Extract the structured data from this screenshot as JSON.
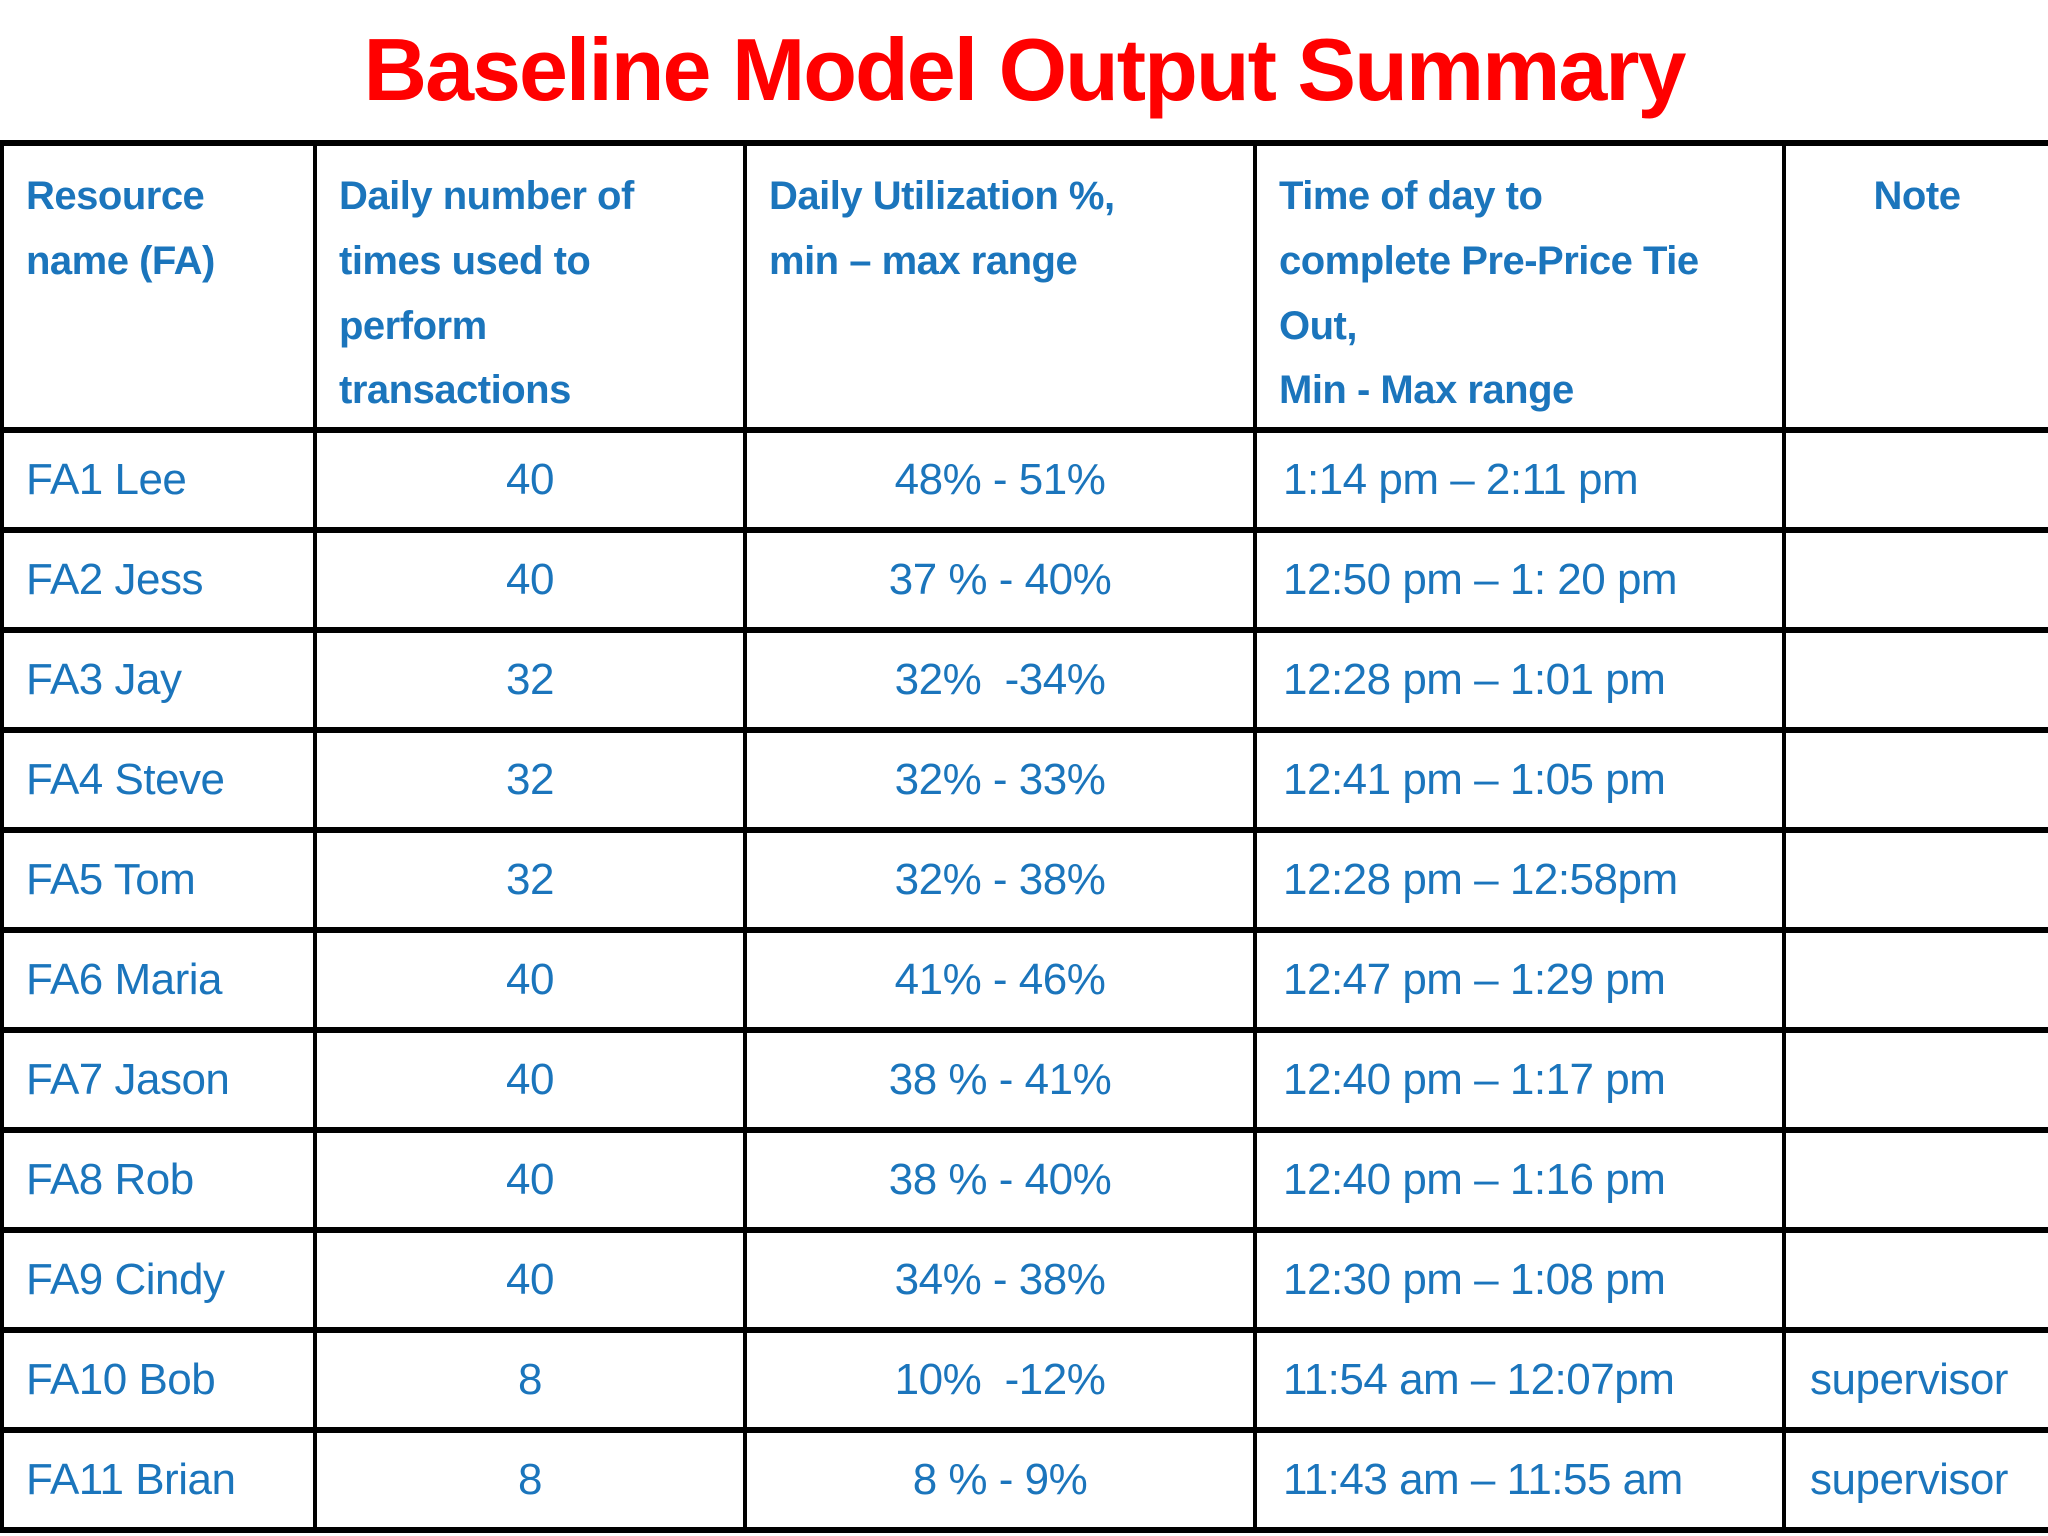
{
  "title": {
    "text": "Baseline Model Output Summary"
  },
  "colors": {
    "title_red": "#FF0000",
    "text_blue": "#1B75BC",
    "border_black": "#000000",
    "bg_white": "#FFFFFF"
  },
  "table": {
    "columns": [
      {
        "key": "resource",
        "label": "Resource\nname (FA)"
      },
      {
        "key": "daily_times",
        "label": "Daily number of\ntimes used to\nperform\ntransactions"
      },
      {
        "key": "utilization",
        "label": "Daily Utilization %,\nmin – max range"
      },
      {
        "key": "time_of_day",
        "label": "Time of day to\ncomplete Pre-Price Tie\nOut,\nMin - Max range"
      },
      {
        "key": "note",
        "label": "Note"
      }
    ],
    "rows": [
      {
        "resource": "FA1 Lee",
        "daily_times": "40",
        "utilization": "48% - 51%",
        "time_of_day": "1:14 pm – 2:11 pm",
        "note": ""
      },
      {
        "resource": "FA2 Jess",
        "daily_times": "40",
        "utilization": "37 % - 40%",
        "time_of_day": "12:50 pm – 1: 20 pm",
        "note": ""
      },
      {
        "resource": "FA3 Jay",
        "daily_times": "32",
        "utilization": "32%  -34%",
        "time_of_day": "12:28 pm – 1:01 pm",
        "note": ""
      },
      {
        "resource": "FA4 Steve",
        "daily_times": "32",
        "utilization": "32% - 33%",
        "time_of_day": "12:41 pm – 1:05 pm",
        "note": ""
      },
      {
        "resource": "FA5 Tom",
        "daily_times": "32",
        "utilization": "32% - 38%",
        "time_of_day": "12:28 pm – 12:58pm",
        "note": ""
      },
      {
        "resource": "FA6 Maria",
        "daily_times": "40",
        "utilization": "41% - 46%",
        "time_of_day": "12:47 pm – 1:29 pm",
        "note": ""
      },
      {
        "resource": "FA7 Jason",
        "daily_times": "40",
        "utilization": "38 % - 41%",
        "time_of_day": "12:40 pm – 1:17 pm",
        "note": ""
      },
      {
        "resource": "FA8 Rob",
        "daily_times": "40",
        "utilization": "38 % - 40%",
        "time_of_day": "12:40 pm – 1:16 pm",
        "note": ""
      },
      {
        "resource": "FA9 Cindy",
        "daily_times": "40",
        "utilization": "34% - 38%",
        "time_of_day": "12:30 pm – 1:08 pm",
        "note": ""
      },
      {
        "resource": "FA10 Bob",
        "daily_times": "8",
        "utilization": "10%  -12%",
        "time_of_day": "11:54 am – 12:07pm",
        "note": "supervisor"
      },
      {
        "resource": "FA11 Brian",
        "daily_times": "8",
        "utilization": "8 % - 9%",
        "time_of_day": "11:43 am – 11:55 am",
        "note": "supervisor"
      }
    ]
  }
}
